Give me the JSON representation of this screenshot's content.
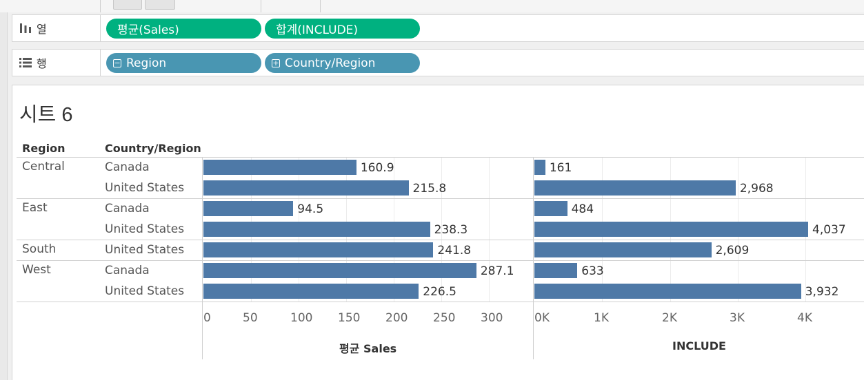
{
  "shelves": {
    "columns": {
      "label": "열",
      "pills": [
        "평균(Sales)",
        "합계(INCLUDE)"
      ]
    },
    "rows": {
      "label": "행",
      "pills": [
        "Region",
        "Country/Region"
      ]
    }
  },
  "sheet_title": "시트 6",
  "table": {
    "headers": [
      "Region",
      "Country/Region"
    ],
    "regions": [
      "Central",
      "East",
      "South",
      "West"
    ],
    "rows": [
      {
        "region": "Central",
        "country": "Canada"
      },
      {
        "region": "",
        "country": "United States"
      },
      {
        "region": "East",
        "country": "Canada"
      },
      {
        "region": "",
        "country": "United States"
      },
      {
        "region": "South",
        "country": "United States"
      },
      {
        "region": "West",
        "country": "Canada"
      },
      {
        "region": "",
        "country": "United States"
      }
    ]
  },
  "chart_data": [
    {
      "type": "bar",
      "orientation": "horizontal",
      "categories": [
        "Central / Canada",
        "Central / United States",
        "East / Canada",
        "East / United States",
        "South / United States",
        "West / Canada",
        "West / United States"
      ],
      "values": [
        160.9,
        215.8,
        94.5,
        238.3,
        241.8,
        287.1,
        226.5
      ],
      "value_labels": [
        "160.9",
        "215.8",
        "94.5",
        "238.3",
        "241.8",
        "287.1",
        "226.5"
      ],
      "xlabel": "평균 Sales",
      "xlim": [
        0,
        330
      ],
      "ticks": [
        0,
        50,
        100,
        150,
        200,
        250,
        300
      ],
      "tick_labels": [
        "0",
        "50",
        "100",
        "150",
        "200",
        "250",
        "300"
      ],
      "color": "#4e79a7",
      "grid": true
    },
    {
      "type": "bar",
      "orientation": "horizontal",
      "categories": [
        "Central / Canada",
        "Central / United States",
        "East / Canada",
        "East / United States",
        "South / United States",
        "West / Canada",
        "West / United States"
      ],
      "values": [
        161,
        2968,
        484,
        4037,
        2609,
        633,
        3932
      ],
      "value_labels": [
        "161",
        "2,968",
        "484",
        "4,037",
        "2,609",
        "633",
        "3,932"
      ],
      "xlabel": "INCLUDE",
      "xlim": [
        0,
        4860
      ],
      "ticks": [
        0,
        1000,
        2000,
        3000,
        4000
      ],
      "tick_labels": [
        "0K",
        "1K",
        "2K",
        "3K",
        "4K"
      ],
      "color": "#4e79a7",
      "grid": true
    }
  ]
}
